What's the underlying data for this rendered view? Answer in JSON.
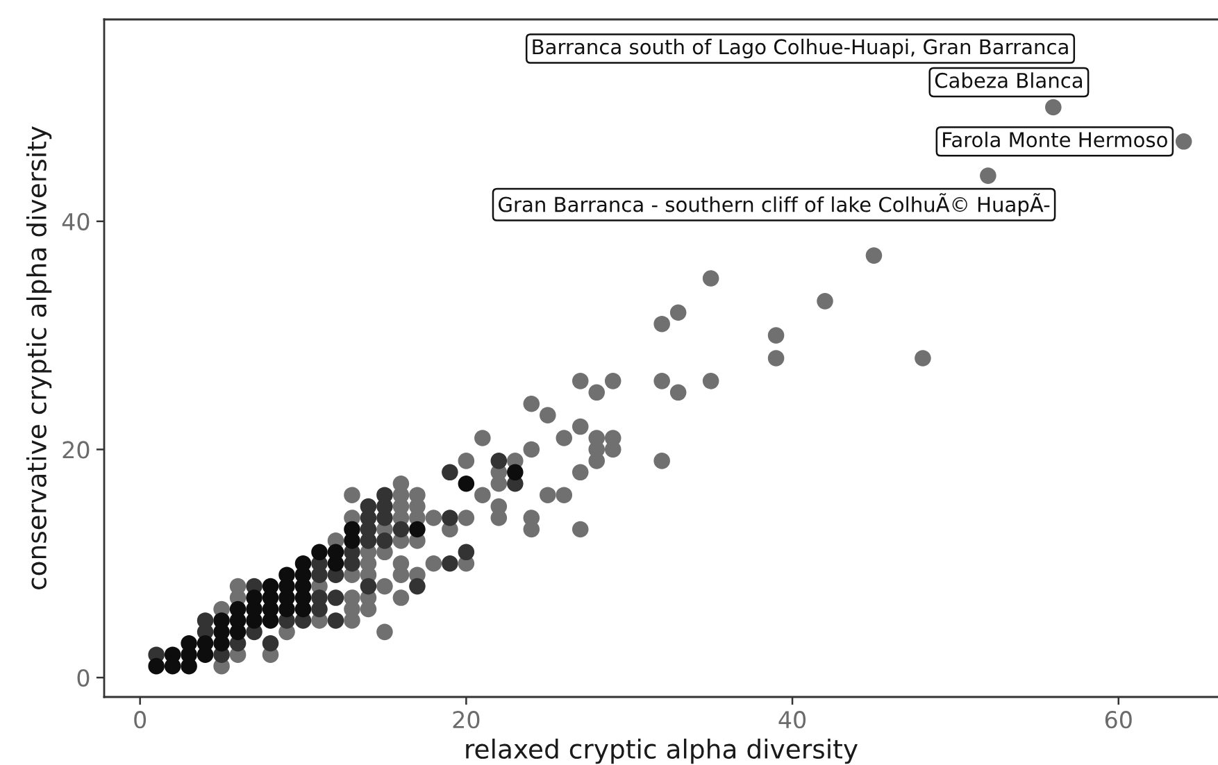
{
  "chart_data": {
    "type": "scatter",
    "xlabel": "relaxed cryptic alpha diversity",
    "ylabel": "conservative cryptic alpha diversity",
    "xlim": [
      -2.2,
      66.1
    ],
    "ylim": [
      -1.7,
      57.7
    ],
    "xticks": [
      0,
      20,
      40,
      60
    ],
    "yticks": [
      0,
      20,
      40
    ],
    "marker": "circle",
    "series": [
      {
        "color": "#707070",
        "x": [
          52,
          56,
          64,
          45,
          42,
          48,
          39,
          39,
          35,
          32,
          33,
          27,
          28,
          29,
          32,
          33,
          35,
          24,
          25,
          21,
          26,
          27,
          28,
          29,
          28,
          29,
          28,
          27,
          24,
          32,
          20,
          23,
          22,
          22,
          21,
          22,
          22,
          24,
          24,
          25,
          26,
          27,
          18,
          20,
          19,
          18,
          20,
          17,
          17,
          17,
          5,
          6,
          8,
          9,
          15,
          11,
          13,
          5,
          13,
          14,
          6,
          13,
          14,
          16,
          6,
          11,
          15,
          13,
          14,
          16,
          17,
          14,
          16,
          14,
          15,
          12,
          16,
          15,
          13,
          16,
          17,
          16,
          13,
          16,
          16
        ],
        "values": [
          44,
          50,
          47,
          37,
          33,
          28,
          30,
          28,
          35,
          31,
          32,
          26,
          25,
          26,
          26,
          25,
          26,
          24,
          23,
          21,
          21,
          22,
          21,
          21,
          20,
          20,
          19,
          18,
          20,
          19,
          19,
          19,
          18,
          17,
          16,
          15,
          14,
          14,
          13,
          16,
          16,
          13,
          14,
          14,
          13,
          10,
          10,
          16,
          15,
          12,
          1,
          2,
          2,
          4,
          4,
          5,
          5,
          6,
          6,
          6,
          7,
          7,
          7,
          7,
          8,
          8,
          8,
          9,
          9,
          9,
          9,
          10,
          10,
          11,
          11,
          12,
          12,
          13,
          14,
          14,
          14,
          15,
          16,
          16,
          17
        ]
      },
      {
        "color": "#333333",
        "x": [
          1,
          5,
          6,
          8,
          4,
          7,
          4,
          9,
          10,
          12,
          11,
          11,
          12,
          7,
          14,
          17,
          11,
          12,
          11,
          13,
          19,
          13,
          20,
          14,
          15,
          14,
          16,
          14,
          15,
          19,
          14,
          15,
          15,
          19,
          22,
          23
        ],
        "values": [
          2,
          2,
          3,
          3,
          4,
          4,
          5,
          5,
          5,
          5,
          6,
          7,
          7,
          8,
          8,
          8,
          9,
          9,
          10,
          10,
          10,
          11,
          11,
          12,
          12,
          13,
          13,
          14,
          14,
          14,
          15,
          15,
          16,
          18,
          19,
          17
        ]
      },
      {
        "color": "#0d0d0d",
        "x": [
          1,
          2,
          3,
          2,
          3,
          4,
          3,
          4,
          5,
          5,
          6,
          5,
          6,
          7,
          8,
          6,
          7,
          8,
          9,
          10,
          7,
          8,
          9,
          10,
          8,
          9,
          10,
          9,
          10,
          10,
          12,
          11,
          12,
          13,
          13,
          17,
          20,
          23
        ],
        "values": [
          1,
          1,
          1,
          2,
          2,
          2,
          3,
          3,
          3,
          4,
          4,
          5,
          5,
          5,
          5,
          6,
          6,
          6,
          6,
          6,
          7,
          7,
          7,
          7,
          8,
          8,
          8,
          9,
          9,
          10,
          10,
          11,
          11,
          12,
          13,
          13,
          17,
          18
        ]
      }
    ],
    "annotations": [
      "Barranca south of Lago Colhue-Huapi, Gran Barranca",
      {
        "text": "Cabeza Blanca",
        "x": 56,
        "y": 50
      },
      {
        "text": "Farola Monte Hermoso",
        "x": 64,
        "y": 47
      },
      {
        "text": "Gran Barranca - southern cliff of lake ColhuÃ© HuapÃ-",
        "x": 52,
        "y": 44
      }
    ]
  }
}
